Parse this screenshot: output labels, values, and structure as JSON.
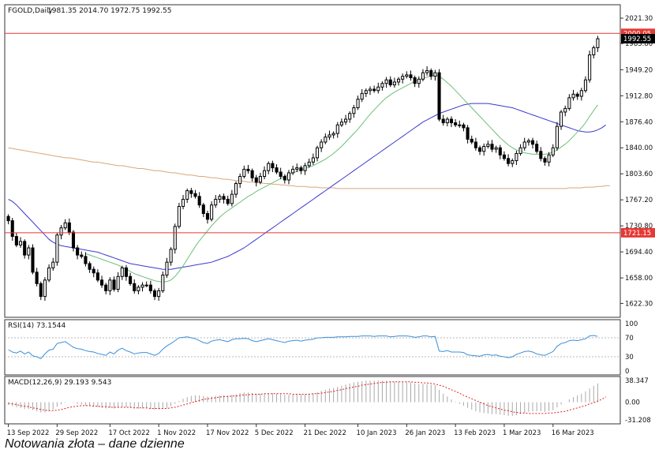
{
  "caption": "Notowania złota – dane dzienne",
  "chart_data": [
    {
      "type": "candlestick",
      "title": "FGOLD,Daily",
      "ohlc_readout": "1981.35 2014.70 1972.75 1992.55",
      "x_ticks": [
        "13 Sep 2022",
        "29 Sep 2022",
        "17 Oct 2022",
        "1 Nov 2022",
        "17 Nov 2022",
        "5 Dec 2022",
        "21 Dec 2022",
        "10 Jan 2023",
        "26 Jan 2023",
        "13 Feb 2023",
        "1 Mar 2023",
        "16 Mar 2023"
      ],
      "y_ticks": [
        "2021.30",
        "1985.80",
        "1949.20",
        "1912.80",
        "1876.40",
        "1840.00",
        "1803.60",
        "1767.20",
        "1730.80",
        "1694.40",
        "1658.00",
        "1622.30"
      ],
      "ylim": [
        1604,
        2039
      ],
      "y_tick_values": [
        2021.3,
        1985.8,
        1949.2,
        1912.8,
        1876.4,
        1840.0,
        1803.6,
        1767.2,
        1730.8,
        1694.4,
        1658.0,
        1622.3
      ],
      "levels": [
        {
          "value": 2000.05,
          "label": "2000.05",
          "color": "#e53935"
        },
        {
          "value": 1721.15,
          "label": "1721.15",
          "color": "#e53935"
        }
      ],
      "current_price": {
        "value": 1992.55,
        "label": "1992.55"
      },
      "closes": [
        1738,
        1716,
        1704,
        1709,
        1690,
        1700,
        1666,
        1650,
        1632,
        1655,
        1672,
        1680,
        1718,
        1728,
        1735,
        1722,
        1700,
        1690,
        1688,
        1678,
        1670,
        1665,
        1655,
        1648,
        1640,
        1655,
        1642,
        1660,
        1672,
        1660,
        1650,
        1640,
        1645,
        1648,
        1648,
        1640,
        1632,
        1640,
        1662,
        1680,
        1698,
        1730,
        1758,
        1768,
        1780,
        1776,
        1772,
        1760,
        1748,
        1740,
        1760,
        1768,
        1772,
        1768,
        1762,
        1775,
        1790,
        1800,
        1810,
        1808,
        1798,
        1792,
        1800,
        1808,
        1818,
        1812,
        1806,
        1800,
        1795,
        1805,
        1810,
        1812,
        1808,
        1815,
        1820,
        1826,
        1840,
        1848,
        1855,
        1858,
        1860,
        1872,
        1876,
        1880,
        1888,
        1896,
        1908,
        1916,
        1920,
        1922,
        1920,
        1925,
        1930,
        1935,
        1928,
        1932,
        1936,
        1940,
        1942,
        1938,
        1930,
        1936,
        1945,
        1948,
        1940,
        1945,
        1880,
        1875,
        1880,
        1875,
        1872,
        1872,
        1868,
        1852,
        1848,
        1840,
        1835,
        1842,
        1845,
        1838,
        1840,
        1830,
        1825,
        1818,
        1822,
        1832,
        1840,
        1848,
        1850,
        1845,
        1835,
        1825,
        1820,
        1830,
        1840,
        1870,
        1890,
        1895,
        1910,
        1915,
        1912,
        1920,
        1935,
        1970,
        1980,
        1992.55
      ],
      "ma_fast": [
        null,
        null,
        null,
        null,
        null,
        null,
        null,
        null,
        null,
        null,
        null,
        null,
        null,
        null,
        null,
        null,
        null,
        null,
        null,
        1692,
        1690,
        1688,
        1686,
        1684,
        1682,
        1680,
        1678,
        1676,
        1673,
        1670,
        1667,
        1664,
        1662,
        1660,
        1658,
        1656,
        1654,
        1653,
        1652,
        1653,
        1655,
        1660,
        1667,
        1675,
        1684,
        1693,
        1702,
        1710,
        1717,
        1724,
        1731,
        1737,
        1743,
        1748,
        1752,
        1756,
        1760,
        1764,
        1768,
        1772,
        1775,
        1779,
        1782,
        1785,
        1788,
        1791,
        1794,
        1797,
        1800,
        1803,
        1805,
        1807,
        1809,
        1811,
        1813,
        1815,
        1818,
        1821,
        1824,
        1828,
        1832,
        1837,
        1842,
        1848,
        1854,
        1860,
        1866,
        1873,
        1880,
        1887,
        1893,
        1899,
        1905,
        1910,
        1914,
        1918,
        1921,
        1924,
        1927,
        1930,
        1933,
        1935,
        1937,
        1939,
        1941,
        1942,
        1940,
        1936,
        1931,
        1926,
        1920,
        1914,
        1908,
        1902,
        1896,
        1890,
        1884,
        1878,
        1872,
        1866,
        1860,
        1854,
        1849,
        1844,
        1840,
        1837,
        1835,
        1833,
        1832,
        1831,
        1831,
        1831,
        1831,
        1832,
        1834,
        1837,
        1841,
        1845,
        1850,
        1856,
        1862,
        1868,
        1875,
        1884,
        1892,
        1900
      ],
      "ma_slow": [
        1768,
        1765,
        1760,
        1754,
        1748,
        1742,
        1736,
        1730,
        1724,
        1718,
        1712,
        1708,
        1705,
        1703,
        1702,
        1701,
        1700,
        1699,
        1698,
        1697,
        1696,
        1695,
        1694,
        1692,
        1690,
        1688,
        1686,
        1684,
        1682,
        1680,
        1678,
        1677,
        1676,
        1675,
        1674,
        1673,
        1672,
        1671,
        1670,
        1670,
        1670,
        1671,
        1672,
        1673,
        1674,
        1675,
        1676,
        1677,
        1678,
        1679,
        1680,
        1682,
        1684,
        1686,
        1688,
        1691,
        1694,
        1697,
        1700,
        1704,
        1708,
        1712,
        1716,
        1720,
        1724,
        1728,
        1732,
        1736,
        1740,
        1744,
        1748,
        1752,
        1756,
        1760,
        1764,
        1768,
        1772,
        1776,
        1780,
        1784,
        1788,
        1792,
        1796,
        1800,
        1804,
        1808,
        1812,
        1816,
        1820,
        1824,
        1828,
        1832,
        1836,
        1840,
        1844,
        1848,
        1852,
        1856,
        1860,
        1864,
        1868,
        1872,
        1876,
        1879,
        1882,
        1885,
        1888,
        1890,
        1892,
        1894,
        1896,
        1898,
        1900,
        1901,
        1902,
        1902,
        1902,
        1902,
        1902,
        1901,
        1900,
        1899,
        1898,
        1897,
        1896,
        1894,
        1892,
        1890,
        1888,
        1886,
        1884,
        1882,
        1880,
        1878,
        1876,
        1874,
        1872,
        1870,
        1868,
        1866,
        1864,
        1863,
        1862,
        1862,
        1863,
        1865,
        1868,
        1872
      ],
      "ma_long": [
        1840,
        1839,
        1838,
        1837,
        1836,
        1835,
        1834,
        1833,
        1832,
        1831,
        1830,
        1829,
        1828,
        1827,
        1826,
        1826,
        1825,
        1824,
        1823,
        1822,
        1821,
        1820,
        1820,
        1819,
        1818,
        1817,
        1816,
        1815,
        1815,
        1814,
        1813,
        1812,
        1811,
        1811,
        1810,
        1809,
        1808,
        1808,
        1807,
        1806,
        1805,
        1805,
        1804,
        1803,
        1802,
        1802,
        1801,
        1800,
        1800,
        1799,
        1798,
        1798,
        1797,
        1796,
        1796,
        1795,
        1794,
        1794,
        1793,
        1792,
        1792,
        1791,
        1791,
        1790,
        1790,
        1789,
        1789,
        1788,
        1788,
        1787,
        1787,
        1786,
        1786,
        1786,
        1785,
        1785,
        1785,
        1784,
        1784,
        1784,
        1784,
        1783,
        1783,
        1783,
        1783,
        1783,
        1783,
        1783,
        1783,
        1783,
        1783,
        1783,
        1783,
        1783,
        1783,
        1783,
        1783,
        1783,
        1783,
        1783,
        1783,
        1783,
        1783,
        1783,
        1783,
        1783,
        1783,
        1783,
        1783,
        1783,
        1783,
        1783,
        1783,
        1783,
        1783,
        1783,
        1783,
        1783,
        1783,
        1783,
        1783,
        1783,
        1783,
        1783,
        1783,
        1783,
        1783,
        1783,
        1783,
        1783,
        1783,
        1783,
        1783,
        1783,
        1783,
        1783,
        1783,
        1783,
        1784,
        1784,
        1784,
        1784,
        1785,
        1785,
        1785,
        1786,
        1786,
        1787,
        1787
      ]
    },
    {
      "type": "line",
      "title": "RSI(14) 73.1544",
      "y_ticks": [
        "100",
        "70",
        "30",
        "0"
      ],
      "y_tick_values": [
        100,
        70,
        30,
        0
      ],
      "ylim": [
        0,
        100
      ],
      "levels": [
        70,
        30
      ],
      "values": [
        45,
        40,
        38,
        42,
        36,
        40,
        32,
        30,
        26,
        36,
        44,
        46,
        58,
        60,
        62,
        56,
        50,
        47,
        46,
        43,
        41,
        40,
        37,
        35,
        33,
        40,
        36,
        44,
        48,
        43,
        40,
        36,
        38,
        39,
        39,
        36,
        33,
        37,
        46,
        53,
        58,
        64,
        70,
        71,
        72,
        70,
        68,
        64,
        60,
        58,
        63,
        65,
        66,
        64,
        62,
        66,
        68,
        68,
        69,
        68,
        64,
        62,
        64,
        66,
        68,
        66,
        64,
        62,
        60,
        63,
        64,
        65,
        63,
        65,
        66,
        67,
        70,
        70,
        71,
        71,
        71,
        72,
        72,
        72,
        73,
        73,
        73,
        74,
        74,
        74,
        73,
        74,
        74,
        74,
        72,
        73,
        74,
        74,
        74,
        73,
        71,
        72,
        74,
        74,
        72,
        73,
        42,
        41,
        43,
        40,
        40,
        40,
        39,
        34,
        33,
        32,
        31,
        34,
        35,
        33,
        34,
        31,
        30,
        28,
        30,
        35,
        38,
        41,
        42,
        40,
        36,
        34,
        33,
        37,
        41,
        52,
        58,
        60,
        64,
        65,
        64,
        66,
        68,
        74,
        75,
        73
      ]
    },
    {
      "type": "bar",
      "title": "MACD(12,26,9) 29.193 9.543",
      "y_ticks": [
        "38.347",
        "0.00",
        "-31.208"
      ],
      "y_tick_values": [
        38.347,
        0,
        -31.208
      ],
      "ylim": [
        -31.208,
        38.347
      ],
      "histogram": [
        -5,
        -7,
        -9,
        -10,
        -12,
        -12,
        -14,
        -16,
        -18,
        -18,
        -16,
        -13,
        -8,
        -4,
        -1,
        0,
        -1,
        -3,
        -4,
        -6,
        -7,
        -8,
        -9,
        -10,
        -11,
        -10,
        -11,
        -10,
        -9,
        -9,
        -10,
        -11,
        -11,
        -11,
        -11,
        -12,
        -13,
        -13,
        -12,
        -10,
        -7,
        -3,
        2,
        6,
        9,
        11,
        12,
        12,
        11,
        10,
        10,
        11,
        12,
        12,
        12,
        13,
        14,
        16,
        17,
        17,
        16,
        15,
        15,
        15,
        16,
        16,
        15,
        14,
        13,
        13,
        13,
        14,
        14,
        14,
        15,
        16,
        18,
        20,
        22,
        24,
        25,
        27,
        29,
        31,
        33,
        35,
        36,
        37,
        38,
        38,
        38,
        38,
        38,
        38,
        37,
        36,
        36,
        36,
        36,
        35,
        33,
        32,
        32,
        32,
        31,
        30,
        22,
        15,
        10,
        5,
        1,
        -3,
        -6,
        -10,
        -13,
        -16,
        -18,
        -19,
        -20,
        -21,
        -21,
        -22,
        -23,
        -24,
        -24,
        -23,
        -21,
        -19,
        -17,
        -16,
        -16,
        -16,
        -17,
        -16,
        -14,
        -9,
        -4,
        0,
        5,
        9,
        12,
        15,
        19,
        24,
        29,
        33
      ],
      "signal": [
        -2,
        -3,
        -4,
        -6,
        -7,
        -8,
        -10,
        -11,
        -13,
        -14,
        -15,
        -15,
        -14,
        -13,
        -11,
        -9,
        -8,
        -7,
        -6,
        -6,
        -6,
        -7,
        -7,
        -8,
        -8,
        -9,
        -9,
        -9,
        -9,
        -9,
        -9,
        -10,
        -10,
        -10,
        -10,
        -11,
        -11,
        -11,
        -11,
        -11,
        -10,
        -9,
        -7,
        -5,
        -3,
        -1,
        1,
        3,
        5,
        6,
        7,
        8,
        9,
        10,
        10,
        11,
        11,
        12,
        13,
        13,
        14,
        14,
        14,
        15,
        15,
        15,
        15,
        15,
        15,
        15,
        14,
        14,
        14,
        14,
        14,
        15,
        15,
        16,
        17,
        18,
        19,
        21,
        22,
        24,
        25,
        27,
        28,
        30,
        31,
        32,
        33,
        34,
        35,
        35,
        36,
        36,
        36,
        36,
        36,
        36,
        35,
        35,
        34,
        34,
        33,
        32,
        30,
        28,
        25,
        22,
        19,
        16,
        12,
        9,
        6,
        3,
        0,
        -3,
        -6,
        -8,
        -10,
        -12,
        -14,
        -15,
        -17,
        -18,
        -19,
        -19,
        -20,
        -20,
        -20,
        -20,
        -20,
        -19,
        -19,
        -18,
        -17,
        -16,
        -14,
        -12,
        -10,
        -8,
        -6,
        -3,
        -1,
        2,
        5,
        9.543
      ]
    }
  ]
}
